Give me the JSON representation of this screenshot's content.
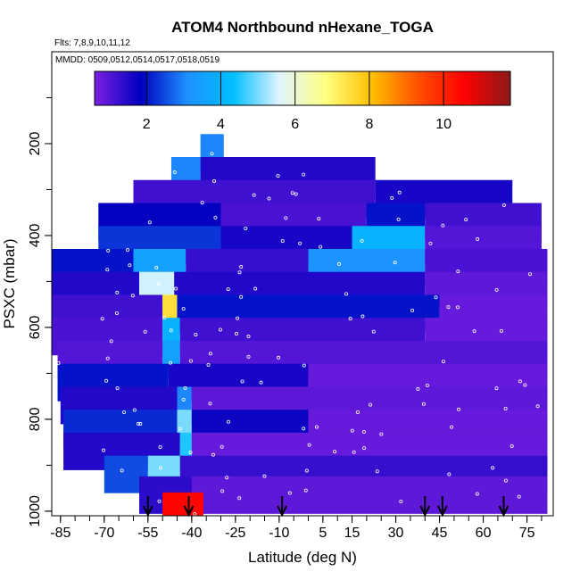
{
  "chart_data": {
    "type": "heatmap",
    "title": "ATOM4 Northbound nHexane_TOGA",
    "flights_label": "Flts: 7,8,9,10,11,12",
    "dates_label": "MMDD: 0509,0512,0514,0517,0518,0519",
    "xlabel": "Latitude (deg N)",
    "ylabel": "PSXC (mbar)",
    "xlim": [
      -88,
      84
    ],
    "ylim": [
      1010,
      0
    ],
    "x_ticks": [
      -85,
      -70,
      -55,
      -40,
      -25,
      -10,
      5,
      15,
      30,
      45,
      60,
      75
    ],
    "x_tick_labels": [
      "-85",
      "-70",
      "-55",
      "-40",
      "-25",
      "-10",
      "5",
      "15",
      "30",
      "45",
      "60",
      "75"
    ],
    "y_ticks": [
      200,
      400,
      600,
      800,
      1000
    ],
    "y_tick_labels": [
      "200",
      "400",
      "600",
      "800",
      "1000"
    ],
    "colorbar": {
      "range": [
        0.6,
        11.8
      ],
      "ticks": [
        2,
        4,
        6,
        8,
        10
      ],
      "tick_labels": [
        "2",
        "4",
        "6",
        "8",
        "10"
      ],
      "colors": [
        "#7b1fe0",
        "#0000c0",
        "#1e90ff",
        "#00bfff",
        "#e0f4ff",
        "#ffff80",
        "#ffc000",
        "#ff5000",
        "#ff0000",
        "#8b1a1a"
      ]
    },
    "profile_markers_lat": [
      -55,
      -41,
      -9,
      40,
      46,
      67
    ],
    "levels": [
      {
        "p": 220,
        "segments": [
          [
            -37,
            -29,
            3.0
          ]
        ]
      },
      {
        "p": 270,
        "segments": [
          [
            -47,
            -37,
            3.0
          ],
          [
            -37,
            23,
            1.5
          ]
        ]
      },
      {
        "p": 320,
        "segments": [
          [
            -60,
            23,
            1.2
          ],
          [
            23,
            70,
            1.6
          ]
        ]
      },
      {
        "p": 370,
        "segments": [
          [
            -72,
            -30,
            1.8
          ],
          [
            -30,
            20,
            1.1
          ],
          [
            20,
            40,
            2.0
          ],
          [
            40,
            80,
            1.2
          ]
        ]
      },
      {
        "p": 420,
        "segments": [
          [
            -72,
            -30,
            2.3
          ],
          [
            -30,
            15,
            1.6
          ],
          [
            15,
            40,
            4.0
          ],
          [
            40,
            80,
            1.0
          ]
        ]
      },
      {
        "p": 470,
        "segments": [
          [
            -88,
            -60,
            2.0
          ],
          [
            -60,
            -42,
            3.5
          ],
          [
            -42,
            0,
            1.3
          ],
          [
            0,
            40,
            3.2
          ],
          [
            40,
            82,
            1.1
          ]
        ]
      },
      {
        "p": 520,
        "segments": [
          [
            -88,
            -58,
            1.5
          ],
          [
            -58,
            -46,
            5.5
          ],
          [
            -46,
            40,
            1.5
          ],
          [
            40,
            82,
            0.9
          ]
        ]
      },
      {
        "p": 570,
        "segments": [
          [
            -88,
            -50,
            1.2
          ],
          [
            -50,
            -45,
            7.5
          ],
          [
            -45,
            45,
            2.0
          ],
          [
            45,
            82,
            0.8
          ]
        ]
      },
      {
        "p": 620,
        "segments": [
          [
            -88,
            -50,
            1.1
          ],
          [
            -50,
            -44,
            4.0
          ],
          [
            -44,
            40,
            1.2
          ],
          [
            40,
            82,
            0.8
          ]
        ]
      },
      {
        "p": 670,
        "segments": [
          [
            -86,
            -50,
            1.0
          ],
          [
            -50,
            -44,
            3.5
          ],
          [
            -44,
            82,
            1.0
          ]
        ]
      },
      {
        "p": 720,
        "segments": [
          [
            -86,
            -48,
            2.0
          ],
          [
            -48,
            0,
            1.6
          ],
          [
            0,
            82,
            0.8
          ]
        ]
      },
      {
        "p": 770,
        "segments": [
          [
            -85,
            -45,
            1.5
          ],
          [
            -45,
            -40,
            3.0
          ],
          [
            -40,
            82,
            0.9
          ]
        ]
      },
      {
        "p": 820,
        "segments": [
          [
            -84,
            -45,
            2.2
          ],
          [
            -45,
            -40,
            5.0
          ],
          [
            -40,
            0,
            1.7
          ],
          [
            0,
            82,
            0.8
          ]
        ]
      },
      {
        "p": 870,
        "segments": [
          [
            -84,
            -44,
            1.5
          ],
          [
            -44,
            -40,
            4.5
          ],
          [
            -40,
            82,
            0.8
          ]
        ]
      },
      {
        "p": 920,
        "segments": [
          [
            -70,
            -55,
            2.5
          ],
          [
            -55,
            -44,
            5.0
          ],
          [
            -44,
            82,
            1.3
          ]
        ]
      },
      {
        "p": 965,
        "segments": [
          [
            -58,
            -40,
            1.4
          ],
          [
            -40,
            82,
            0.9
          ]
        ]
      },
      {
        "p": 1000,
        "segments": [
          [
            -50,
            -36,
            10.5
          ]
        ]
      }
    ]
  }
}
